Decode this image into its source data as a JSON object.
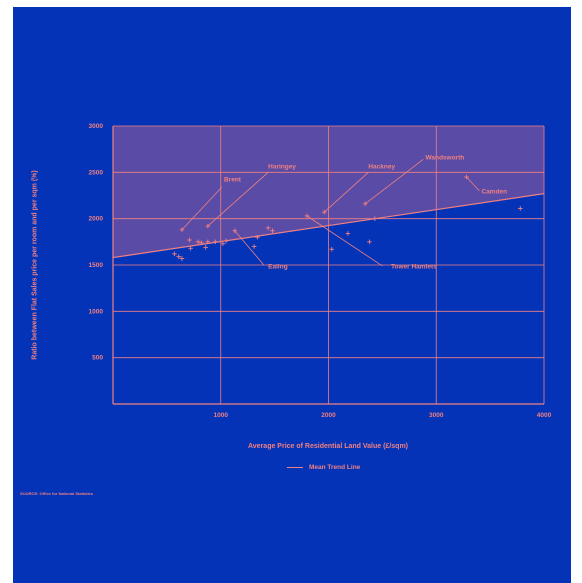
{
  "colors": {
    "background": "#0533b8",
    "accent": "#f08080",
    "shade": "#5a4ba6"
  },
  "chart_data": {
    "type": "scatter",
    "title": "",
    "xlabel": "Average Price of Residential Land Value  (£/sqm)",
    "ylabel": "Ratio between Flat Sales price per room and per sqm (%)",
    "xlim": [
      0,
      4000
    ],
    "ylim": [
      0,
      3000
    ],
    "x_ticks": [
      1000,
      2000,
      3000,
      4000
    ],
    "y_ticks": [
      500,
      1000,
      1500,
      2000,
      2500,
      3000
    ],
    "grid": true,
    "legend": {
      "label": "Mean Trend Line",
      "placement": "bottom-center"
    },
    "trend_line": {
      "x": [
        0,
        4000
      ],
      "y": [
        1580,
        2270
      ]
    },
    "points": [
      {
        "x": 570,
        "y": 1620
      },
      {
        "x": 610,
        "y": 1590
      },
      {
        "x": 640,
        "y": 1570
      },
      {
        "x": 710,
        "y": 1770
      },
      {
        "x": 720,
        "y": 1680
      },
      {
        "x": 790,
        "y": 1750
      },
      {
        "x": 820,
        "y": 1740
      },
      {
        "x": 860,
        "y": 1690
      },
      {
        "x": 880,
        "y": 1750
      },
      {
        "x": 950,
        "y": 1750
      },
      {
        "x": 1020,
        "y": 1730
      },
      {
        "x": 1050,
        "y": 1760
      },
      {
        "x": 1310,
        "y": 1700
      },
      {
        "x": 1340,
        "y": 1800
      },
      {
        "x": 1440,
        "y": 1900
      },
      {
        "x": 1480,
        "y": 1870
      },
      {
        "x": 2030,
        "y": 1670
      },
      {
        "x": 2180,
        "y": 1840
      },
      {
        "x": 2380,
        "y": 1750
      },
      {
        "x": 2430,
        "y": 2000
      },
      {
        "x": 3780,
        "y": 2110
      }
    ],
    "annotations": [
      {
        "label": "Brent",
        "x": 1030,
        "y": 2400,
        "anchor": "start",
        "x1": 640,
        "y1": 1880,
        "x2": 1010,
        "y2": 2340
      },
      {
        "label": "Haringey",
        "x": 1440,
        "y": 2540,
        "anchor": "start",
        "x1": 880,
        "y1": 1920,
        "x2": 1440,
        "y2": 2500
      },
      {
        "label": "Hackney",
        "x": 2370,
        "y": 2540,
        "anchor": "start",
        "x1": 1960,
        "y1": 2070,
        "x2": 2370,
        "y2": 2500
      },
      {
        "label": "Wandsworth",
        "x": 2900,
        "y": 2640,
        "anchor": "start",
        "x1": 2340,
        "y1": 2160,
        "x2": 2880,
        "y2": 2640
      },
      {
        "label": "Camden",
        "x": 3420,
        "y": 2270,
        "anchor": "start",
        "x1": 3280,
        "y1": 2450,
        "x2": 3400,
        "y2": 2300
      },
      {
        "label": "Ealing",
        "x": 1440,
        "y": 1460,
        "anchor": "start",
        "x1": 1130,
        "y1": 1870,
        "x2": 1400,
        "y2": 1500
      },
      {
        "label": "Tower Hamlets",
        "x": 2580,
        "y": 1460,
        "anchor": "start",
        "x1": 1800,
        "y1": 2030,
        "x2": 2500,
        "y2": 1490
      }
    ],
    "marker_only": [
      {
        "x": 640,
        "y": 1880
      },
      {
        "x": 880,
        "y": 1920
      },
      {
        "x": 1960,
        "y": 2070
      },
      {
        "x": 2340,
        "y": 2160
      },
      {
        "x": 3280,
        "y": 2450
      },
      {
        "x": 1130,
        "y": 1870
      },
      {
        "x": 1800,
        "y": 2030
      }
    ]
  },
  "source": "SOURCE: Office for National Statistics"
}
